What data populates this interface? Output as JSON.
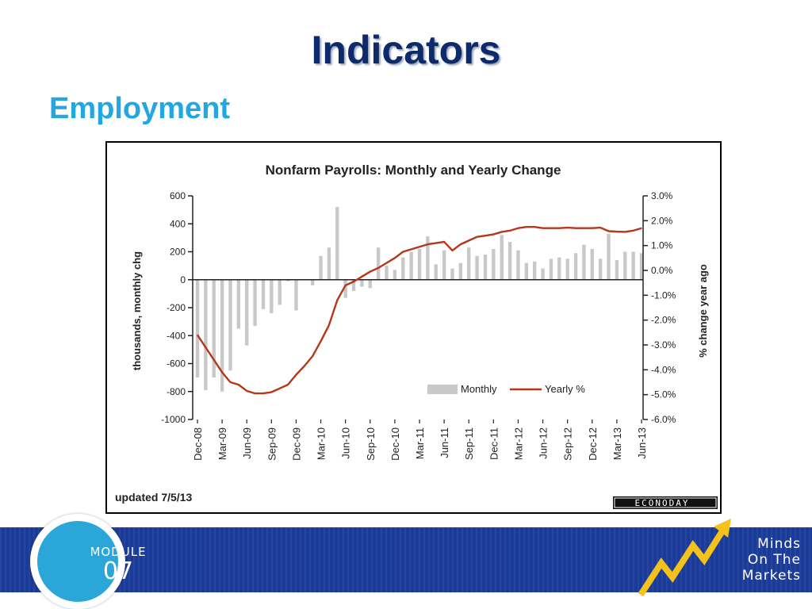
{
  "slide": {
    "title": "Indicators",
    "subtitle": "Employment"
  },
  "chart_data": {
    "type": "bar",
    "title": "Nonfarm Payrolls: Monthly and Yearly Change",
    "ylabel_left": "thousands, monthly chg",
    "ylabel_right": "% change year ago",
    "ylim_left": [
      -1000,
      600
    ],
    "ylim_right": [
      -6.0,
      3.0
    ],
    "yticks_left": [
      "600",
      "400",
      "200",
      "0",
      "-200",
      "-400",
      "-600",
      "-800",
      "-1000"
    ],
    "yticks_right": [
      "3.0%",
      "2.0%",
      "1.0%",
      "0.0%",
      "-1.0%",
      "-2.0%",
      "-3.0%",
      "-4.0%",
      "-5.0%",
      "-6.0%"
    ],
    "x_tick_labels": [
      "Dec-08",
      "Mar-09",
      "Jun-09",
      "Sep-09",
      "Dec-09",
      "Mar-10",
      "Jun-10",
      "Sep-10",
      "Dec-10",
      "Mar-11",
      "Jun-11",
      "Sep-11",
      "Dec-11",
      "Mar-12",
      "Jun-12",
      "Sep-12",
      "Dec-12",
      "Mar-13",
      "Jun-13"
    ],
    "categories": [
      "Dec-08",
      "Jan-09",
      "Feb-09",
      "Mar-09",
      "Apr-09",
      "May-09",
      "Jun-09",
      "Jul-09",
      "Aug-09",
      "Sep-09",
      "Oct-09",
      "Nov-09",
      "Dec-09",
      "Jan-10",
      "Feb-10",
      "Mar-10",
      "Apr-10",
      "May-10",
      "Jun-10",
      "Jul-10",
      "Aug-10",
      "Sep-10",
      "Oct-10",
      "Nov-10",
      "Dec-10",
      "Jan-11",
      "Feb-11",
      "Mar-11",
      "Apr-11",
      "May-11",
      "Jun-11",
      "Jul-11",
      "Aug-11",
      "Sep-11",
      "Oct-11",
      "Nov-11",
      "Dec-11",
      "Jan-12",
      "Feb-12",
      "Mar-12",
      "Apr-12",
      "May-12",
      "Jun-12",
      "Jul-12",
      "Aug-12",
      "Sep-12",
      "Oct-12",
      "Nov-12",
      "Dec-12",
      "Jan-13",
      "Feb-13",
      "Mar-13",
      "Apr-13",
      "May-13",
      "Jun-13"
    ],
    "series": [
      {
        "name": "Monthly",
        "kind": "bar",
        "axis": "left",
        "color": "#c8c8c8",
        "values": [
          -700,
          -790,
          -700,
          -800,
          -650,
          -350,
          -470,
          -330,
          -210,
          -240,
          -180,
          -10,
          -220,
          -5,
          -40,
          170,
          230,
          520,
          -130,
          -80,
          -50,
          -60,
          230,
          100,
          70,
          160,
          200,
          220,
          310,
          110,
          210,
          80,
          120,
          230,
          170,
          180,
          220,
          320,
          270,
          210,
          120,
          130,
          80,
          150,
          160,
          150,
          190,
          250,
          220,
          150,
          330,
          140,
          200,
          200,
          190
        ]
      },
      {
        "name": "Yearly %",
        "kind": "line",
        "axis": "right",
        "color": "#b5371a",
        "values": [
          -2.6,
          -3.1,
          -3.6,
          -4.1,
          -4.5,
          -4.6,
          -4.85,
          -4.95,
          -4.95,
          -4.9,
          -4.75,
          -4.6,
          -4.2,
          -3.85,
          -3.45,
          -2.85,
          -2.2,
          -1.2,
          -0.6,
          -0.45,
          -0.25,
          -0.05,
          0.1,
          0.3,
          0.5,
          0.75,
          0.85,
          0.95,
          1.05,
          1.1,
          1.15,
          0.8,
          1.05,
          1.2,
          1.35,
          1.4,
          1.45,
          1.55,
          1.6,
          1.7,
          1.75,
          1.75,
          1.7,
          1.7,
          1.7,
          1.72,
          1.7,
          1.7,
          1.7,
          1.72,
          1.58,
          1.56,
          1.55,
          1.6,
          1.7
        ]
      }
    ],
    "legend": [
      "Monthly",
      "Yearly %"
    ],
    "legend_position": "bottom-right",
    "footnote": "updated 7/5/13",
    "source_logo": "ECONODAY"
  },
  "footer": {
    "module_label": "MODULE",
    "module_number": "07",
    "brand_line1": "Minds",
    "brand_line2": "On The",
    "brand_line3": "Markets",
    "band_color": "#1b3b99",
    "accent_color": "#2aa7d8",
    "arrow_color": "#f4c21d"
  }
}
